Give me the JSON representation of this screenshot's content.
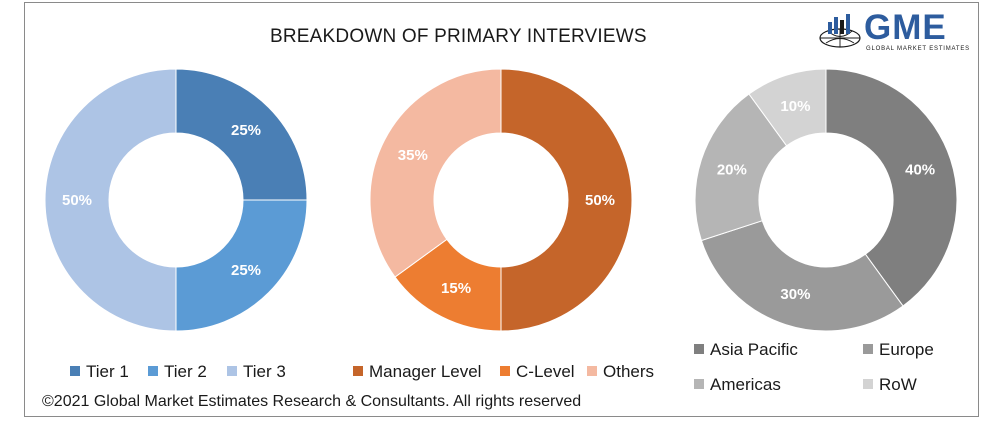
{
  "header": {
    "title": "BREAKDOWN OF PRIMARY INTERVIEWS",
    "logo_text": "GME",
    "logo_subtitle": "GLOBAL MARKET ESTIMATES"
  },
  "footer": {
    "copyright": "©2021 Global Market Estimates Research & Consultants. All rights reserved"
  },
  "chart_data": [
    {
      "type": "pie",
      "donut": true,
      "categories": [
        "Tier 1",
        "Tier 2",
        "Tier 3"
      ],
      "values": [
        25,
        25,
        50
      ],
      "data_labels": [
        "25%",
        "25%",
        "50%"
      ],
      "colors": [
        "#4a7fb5",
        "#5b9bd5",
        "#adc4e5"
      ],
      "legend": "bottom"
    },
    {
      "type": "pie",
      "donut": true,
      "categories": [
        "Manager Level",
        "C-Level",
        "Others"
      ],
      "values": [
        50,
        15,
        35
      ],
      "data_labels": [
        "50%",
        "15%",
        "35%"
      ],
      "colors": [
        "#c5652a",
        "#ed7d31",
        "#f4b9a1"
      ],
      "legend": "bottom"
    },
    {
      "type": "pie",
      "donut": true,
      "categories": [
        "Asia Pacific",
        "Europe",
        "Americas",
        "RoW"
      ],
      "values": [
        40,
        30,
        20,
        10
      ],
      "data_labels": [
        "40%",
        "30%",
        "20%",
        "10%"
      ],
      "colors": [
        "#7f7f7f",
        "#9a9a9a",
        "#b5b5b5",
        "#d3d3d3"
      ],
      "legend": "bottom"
    }
  ]
}
